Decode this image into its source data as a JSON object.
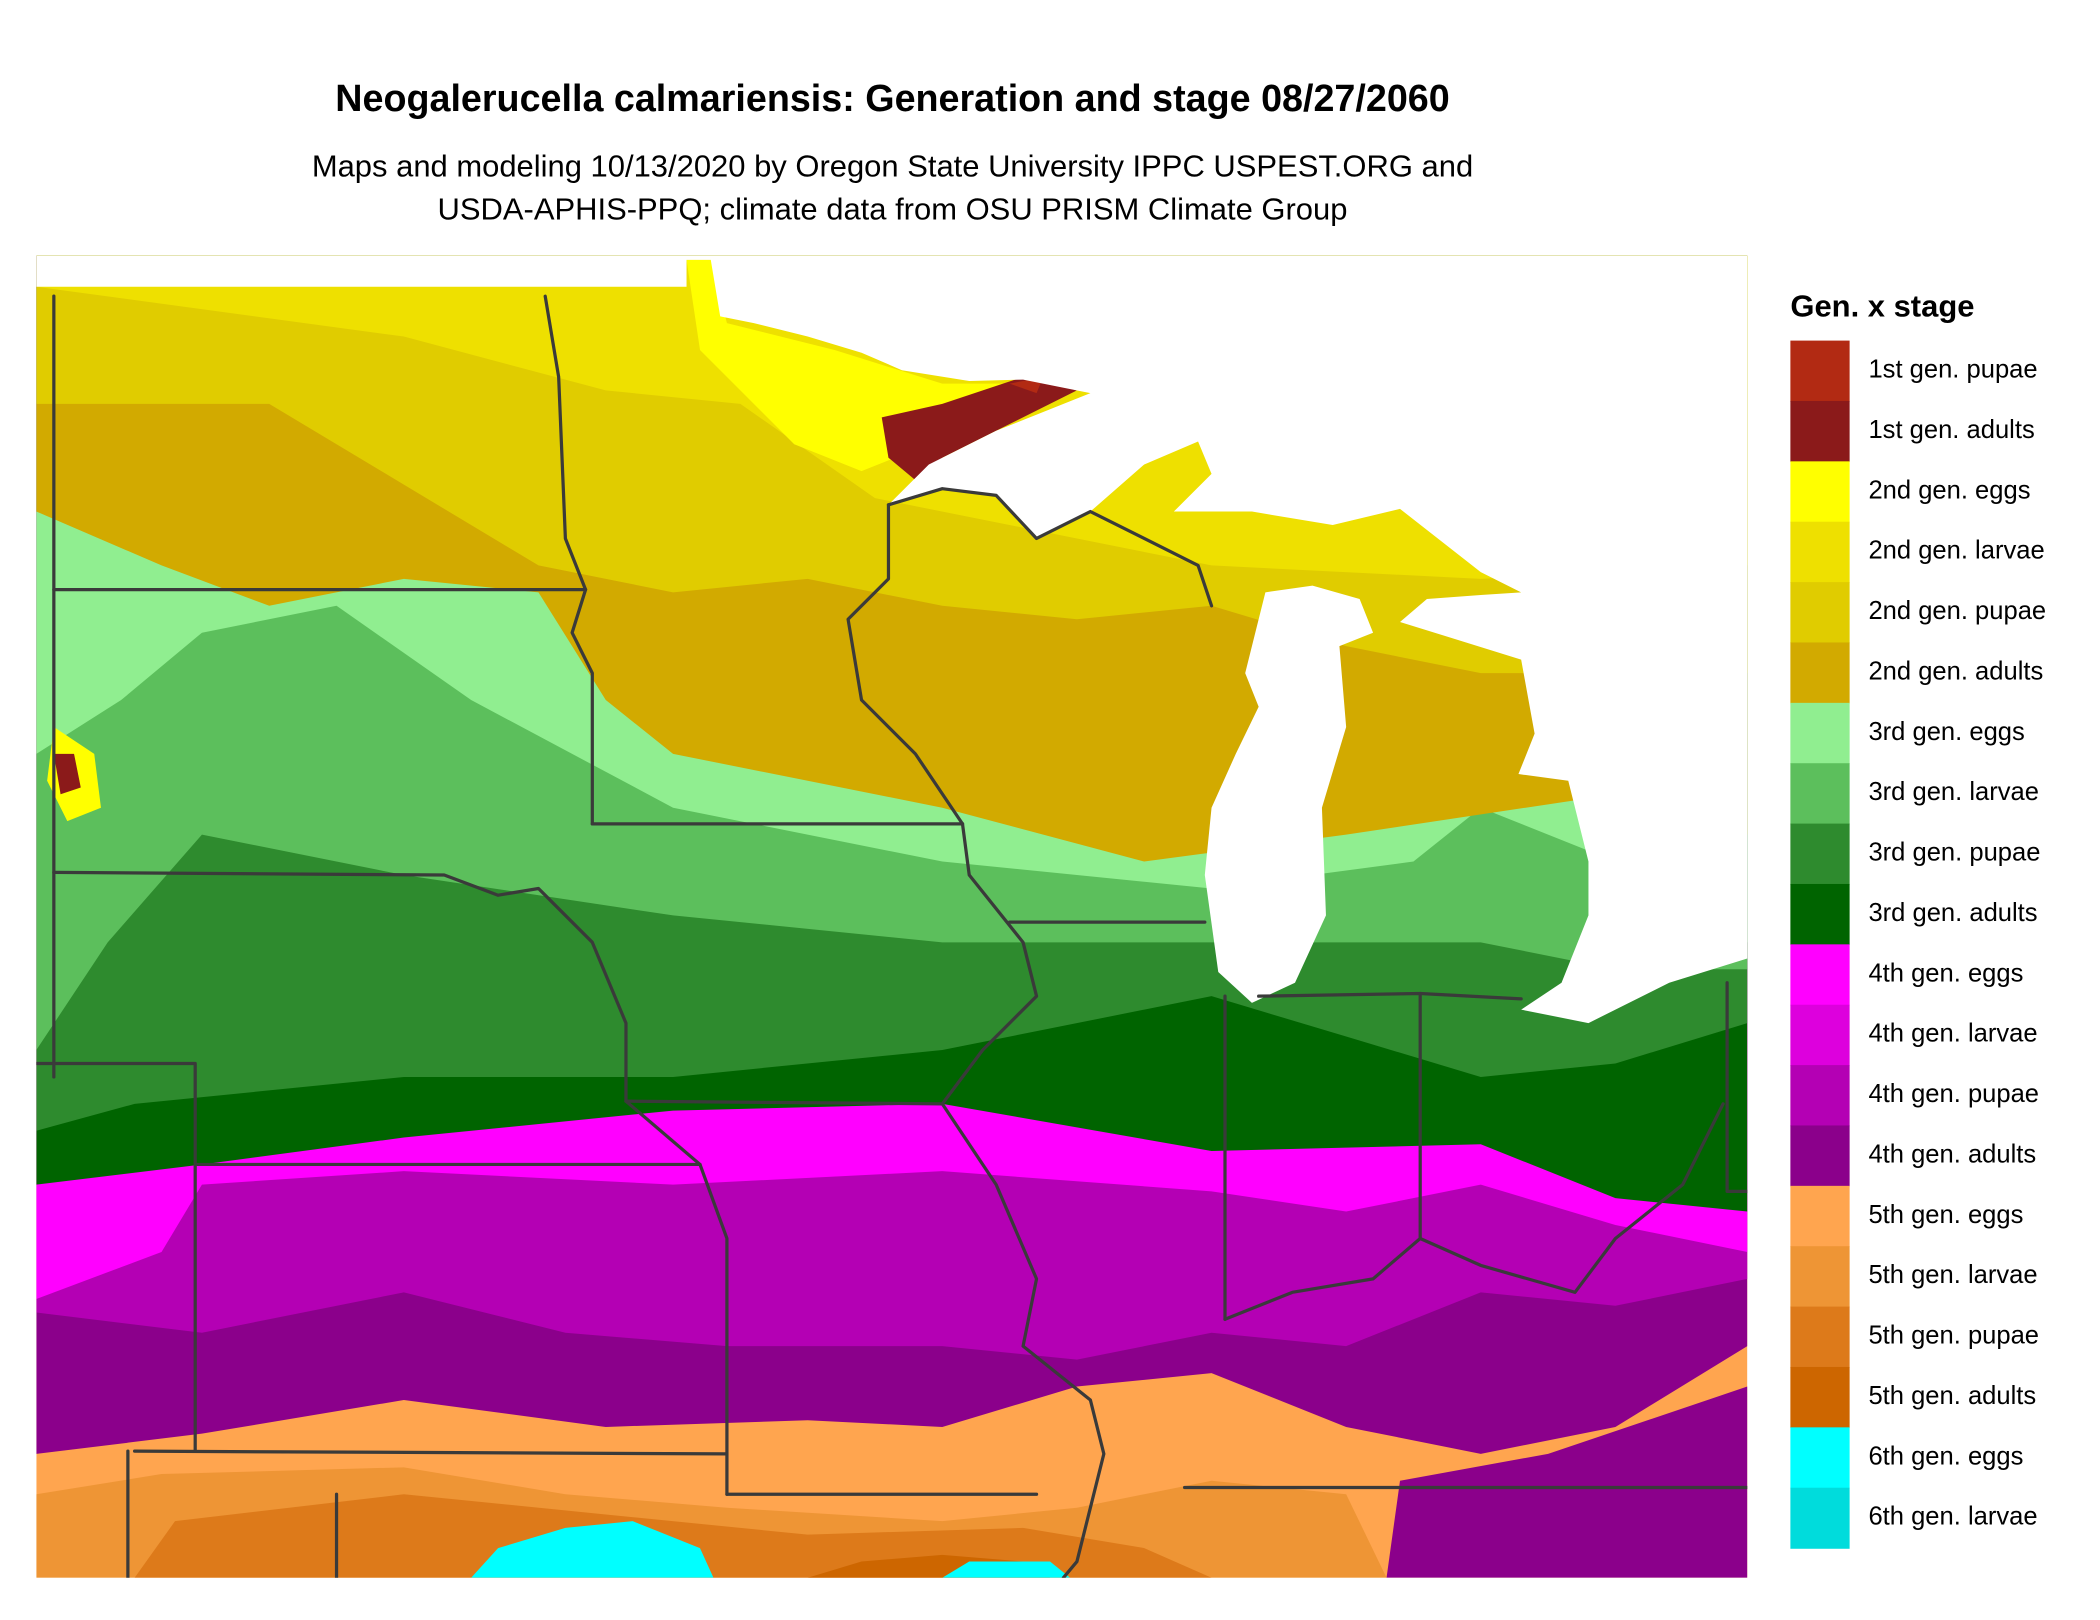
{
  "header": {
    "title": "Neogalerucella calmariensis: Generation and stage 08/27/2060",
    "subtitle": [
      "Maps and modeling 10/13/2020 by Oregon State University IPPC USPEST.ORG and",
      "USDA-APHIS-PPQ; climate data from OSU PRISM Climate Group"
    ]
  },
  "legend": {
    "title": "Gen. x stage",
    "items": [
      {
        "label": "1st gen. pupae",
        "color": "#b22a13"
      },
      {
        "label": "1st gen. adults",
        "color": "#8b1a1a"
      },
      {
        "label": "2nd gen. eggs",
        "color": "#ffff00"
      },
      {
        "label": "2nd gen. larvae",
        "color": "#eee000"
      },
      {
        "label": "2nd gen. pupae",
        "color": "#e0cc00"
      },
      {
        "label": "2nd gen. adults",
        "color": "#d2aa00"
      },
      {
        "label": "3rd gen. eggs",
        "color": "#90ee90"
      },
      {
        "label": "3rd gen. larvae",
        "color": "#5cbf5c"
      },
      {
        "label": "3rd gen. pupae",
        "color": "#2e8b2e"
      },
      {
        "label": "3rd gen. adults",
        "color": "#006400"
      },
      {
        "label": "4th gen. eggs",
        "color": "#ff00ff"
      },
      {
        "label": "4th gen. larvae",
        "color": "#dd00dd"
      },
      {
        "label": "4th gen. pupae",
        "color": "#b400b4"
      },
      {
        "label": "4th gen. adults",
        "color": "#8b008b"
      },
      {
        "label": "5th gen. eggs",
        "color": "#ffa54f"
      },
      {
        "label": "5th gen. larvae",
        "color": "#ee9535"
      },
      {
        "label": "5th gen. pupae",
        "color": "#dd7a1a"
      },
      {
        "label": "5th gen. adults",
        "color": "#cd6600"
      },
      {
        "label": "6th gen. eggs",
        "color": "#00ffff"
      },
      {
        "label": "6th gen. larvae",
        "color": "#00dcdc"
      }
    ]
  }
}
